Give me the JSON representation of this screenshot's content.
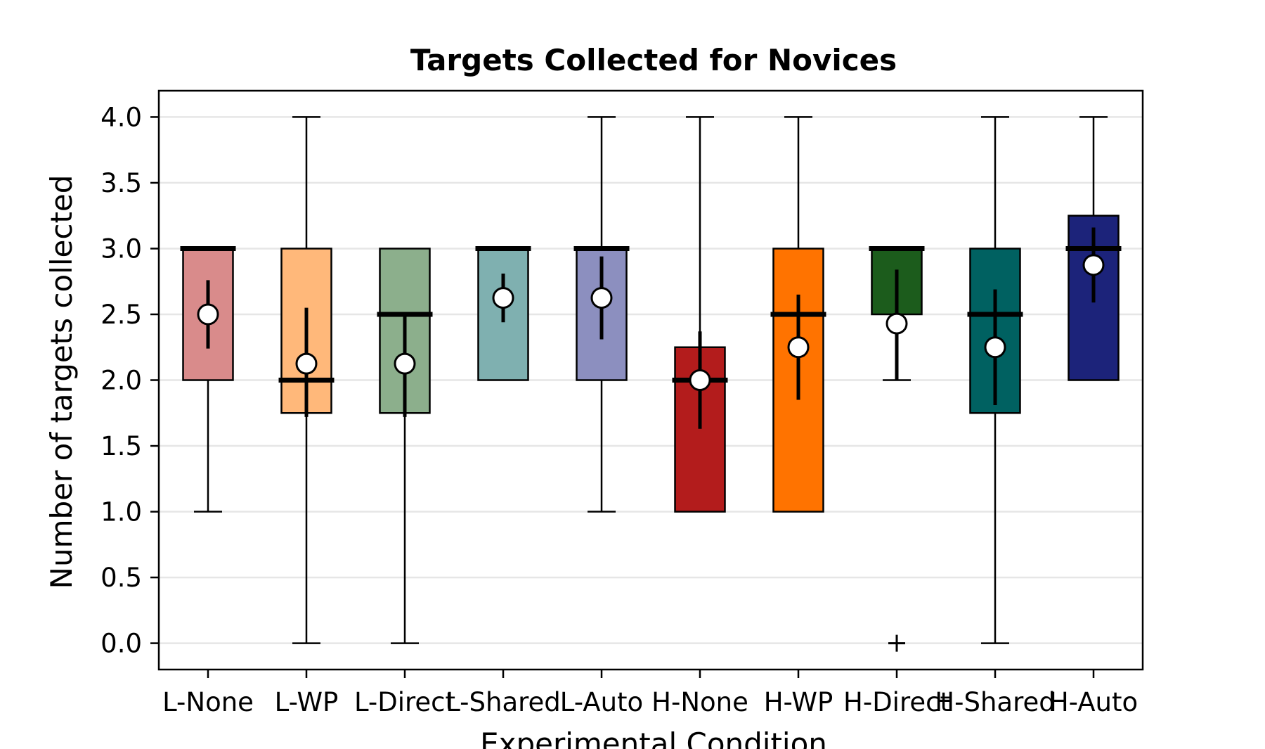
{
  "chart_data": {
    "type": "box",
    "title": "Targets Collected for Novices",
    "xlabel": "Experimental Condition",
    "ylabel": "Number of targets collected",
    "ylim": [
      -0.2,
      4.2
    ],
    "yticks": [
      0.0,
      0.5,
      1.0,
      1.5,
      2.0,
      2.5,
      3.0,
      3.5,
      4.0
    ],
    "ytick_labels": [
      "0.0",
      "0.5",
      "1.0",
      "1.5",
      "2.0",
      "2.5",
      "3.0",
      "3.5",
      "4.0"
    ],
    "grid": "horizontal",
    "categories": [
      "L-None",
      "L-WP",
      "L-Direct",
      "L-Shared",
      "L-Auto",
      "H-None",
      "H-WP",
      "H-Direct",
      "H-Shared",
      "H-Auto"
    ],
    "boxes": [
      {
        "category": "L-None",
        "color": "#d98b8b",
        "whisker_low": 1.0,
        "q1": 2.0,
        "median": 3.0,
        "q3": 3.0,
        "whisker_high": 3.0,
        "mean": 2.5,
        "ci_low": 2.24,
        "ci_high": 2.76,
        "outliers": []
      },
      {
        "category": "L-WP",
        "color": "#ffb87a",
        "whisker_low": 0.0,
        "q1": 1.75,
        "median": 2.0,
        "q3": 3.0,
        "whisker_high": 4.0,
        "mean": 2.125,
        "ci_low": 1.72,
        "ci_high": 2.55,
        "outliers": []
      },
      {
        "category": "L-Direct",
        "color": "#8caf8c",
        "whisker_low": 0.0,
        "q1": 1.75,
        "median": 2.5,
        "q3": 3.0,
        "whisker_high": 3.0,
        "mean": 2.125,
        "ci_low": 1.72,
        "ci_high": 2.5,
        "outliers": []
      },
      {
        "category": "L-Shared",
        "color": "#7fb0b0",
        "whisker_low": 2.0,
        "q1": 2.0,
        "median": 3.0,
        "q3": 3.0,
        "whisker_high": 3.0,
        "mean": 2.625,
        "ci_low": 2.44,
        "ci_high": 2.81,
        "outliers": []
      },
      {
        "category": "L-Auto",
        "color": "#8c8fbf",
        "whisker_low": 1.0,
        "q1": 2.0,
        "median": 3.0,
        "q3": 3.0,
        "whisker_high": 4.0,
        "mean": 2.625,
        "ci_low": 2.31,
        "ci_high": 2.94,
        "outliers": []
      },
      {
        "category": "H-None",
        "color": "#b31c1c",
        "whisker_low": 1.0,
        "q1": 1.0,
        "median": 2.0,
        "q3": 2.25,
        "whisker_high": 4.0,
        "mean": 2.0,
        "ci_low": 1.63,
        "ci_high": 2.37,
        "outliers": []
      },
      {
        "category": "H-WP",
        "color": "#ff7300",
        "whisker_low": 1.0,
        "q1": 1.0,
        "median": 2.5,
        "q3": 3.0,
        "whisker_high": 4.0,
        "mean": 2.25,
        "ci_low": 1.85,
        "ci_high": 2.65,
        "outliers": []
      },
      {
        "category": "H-Direct",
        "color": "#1c5c1c",
        "whisker_low": 2.0,
        "q1": 2.5,
        "median": 3.0,
        "q3": 3.0,
        "whisker_high": 3.0,
        "mean": 2.43,
        "ci_low": 2.0,
        "ci_high": 2.84,
        "outliers": [
          0.0
        ]
      },
      {
        "category": "H-Shared",
        "color": "#006161",
        "whisker_low": 0.0,
        "q1": 1.75,
        "median": 2.5,
        "q3": 3.0,
        "whisker_high": 4.0,
        "mean": 2.25,
        "ci_low": 1.81,
        "ci_high": 2.69,
        "outliers": []
      },
      {
        "category": "H-Auto",
        "color": "#1c237a",
        "whisker_low": 2.0,
        "q1": 2.0,
        "median": 3.0,
        "q3": 3.25,
        "whisker_high": 4.0,
        "mean": 2.875,
        "ci_low": 2.59,
        "ci_high": 3.16,
        "outliers": []
      }
    ]
  }
}
